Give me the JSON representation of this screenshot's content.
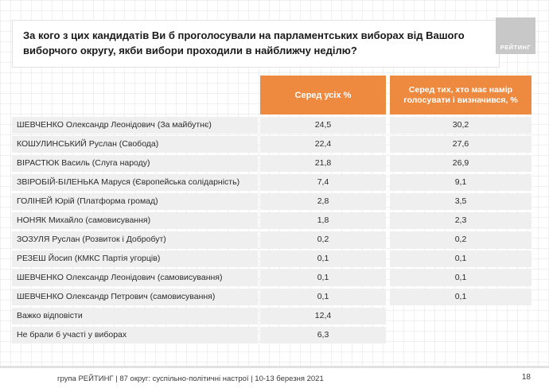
{
  "page": {
    "title": "За кого з цих кандидатів Ви б проголосували на парламентських виборах від Вашого виборчого округу, якби вибори проходили в найближчу неділю?",
    "logo_text": "РЕЙТИНГ",
    "footer_text": "група РЕЙТИНГ  | 87 округ: суспільно-політичні настрої | 10-13 березня 2021",
    "page_number": "18"
  },
  "colors": {
    "accent_orange": "#EE8940",
    "row_gray": "#EFEFEF",
    "logo_gray": "#C8C8C8"
  },
  "chart_data": {
    "type": "table",
    "title": "За кого з цих кандидатів Ви б проголосували на парламентських виборах від Вашого виборчого округу, якби вибори проходили в найближчу неділю?",
    "columns": [
      "Серед усіх %",
      "Серед тих, хто має намір голосувати і визначився, %"
    ],
    "rows": [
      {
        "label": "ШЕВЧЕНКО Олександр Леонідович (За майбутнє)",
        "all": "24,5",
        "decided": "30,2"
      },
      {
        "label": "КОШУЛИНСЬКИЙ Руслан (Свобода)",
        "all": "22,4",
        "decided": "27,6"
      },
      {
        "label": "ВІРАСТЮК Василь (Слуга народу)",
        "all": "21,8",
        "decided": "26,9"
      },
      {
        "label": "ЗВІРОБІЙ-БІЛЕНЬКА Маруся (Європейська солідарність)",
        "all": "7,4",
        "decided": "9,1"
      },
      {
        "label": "ГОЛІНЕЙ Юрій (Платформа громад)",
        "all": "2,8",
        "decided": "3,5"
      },
      {
        "label": "НОНЯК Михайло (самовисування)",
        "all": "1,8",
        "decided": "2,3"
      },
      {
        "label": "ЗОЗУЛЯ Руслан (Розвиток і Добробут)",
        "all": "0,2",
        "decided": "0,2"
      },
      {
        "label": "РЕЗЕШ Йосип (КМКС Партія угорців)",
        "all": "0,1",
        "decided": "0,1"
      },
      {
        "label": "ШЕВЧЕНКО Олександр Леонідович (самовисування)",
        "all": "0,1",
        "decided": "0,1"
      },
      {
        "label": "ШЕВЧЕНКО Олександр Петрович (самовисування)",
        "all": "0,1",
        "decided": "0,1"
      },
      {
        "label": "Важко відповісти",
        "all": "12,4",
        "decided": ""
      },
      {
        "label": "Не брали б участі у виборах",
        "all": "6,3",
        "decided": ""
      }
    ]
  }
}
